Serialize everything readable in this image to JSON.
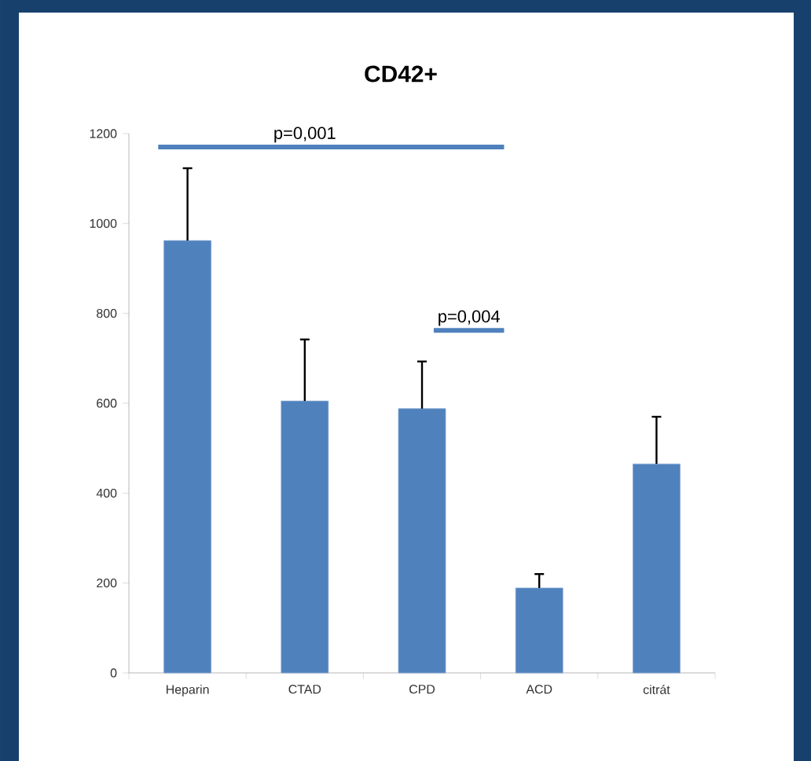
{
  "chart_data": {
    "type": "bar",
    "title": "CD42+",
    "categories": [
      "Heparin",
      "CTAD",
      "CPD",
      "ACD",
      "citrát"
    ],
    "values": [
      962,
      605,
      588,
      189,
      465
    ],
    "errors": [
      [
        962,
        1123
      ],
      [
        605,
        742
      ],
      [
        588,
        693
      ],
      [
        189,
        220
      ],
      [
        465,
        570
      ]
    ],
    "color": "#4f81bd",
    "ylim": [
      0,
      1200
    ],
    "yticks": [
      0,
      200,
      400,
      600,
      800,
      1000,
      1200
    ],
    "annotations": [
      "p=0,001",
      "p=0,004"
    ]
  }
}
